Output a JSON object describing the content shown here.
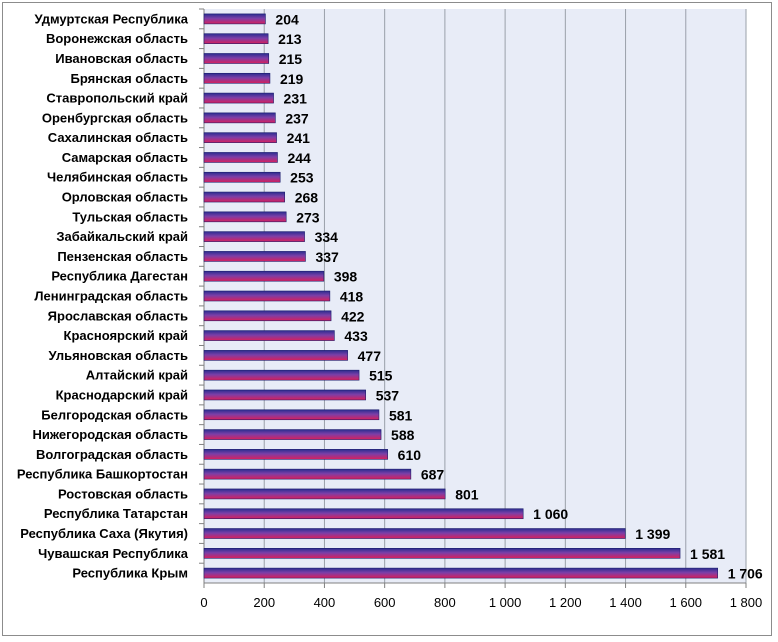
{
  "chart_data": {
    "type": "bar",
    "orientation": "horizontal",
    "categories": [
      "Удмуртская Республика",
      "Воронежская область",
      "Ивановская область",
      "Брянская область",
      "Ставропольский край",
      "Оренбургская область",
      "Сахалинская область",
      "Самарская область",
      "Челябинская область",
      "Орловская область",
      "Тульская область",
      "Забайкальский край",
      "Пензенская область",
      "Республика Дагестан",
      "Ленинградская область",
      "Ярославская область",
      "Красноярский край",
      "Ульяновская область",
      "Алтайский край",
      "Краснодарский край",
      "Белгородская область",
      "Нижегородская область",
      "Волгоградская область",
      "Республика Башкортостан",
      "Ростовская область",
      "Республика Татарстан",
      "Республика Саха (Якутия)",
      "Чувашская Республика",
      "Республика Крым"
    ],
    "values": [
      204,
      213,
      215,
      219,
      231,
      237,
      241,
      244,
      253,
      268,
      273,
      334,
      337,
      398,
      418,
      422,
      433,
      477,
      515,
      537,
      581,
      588,
      610,
      687,
      801,
      1060,
      1399,
      1581,
      1706
    ],
    "value_labels": [
      "204",
      "213",
      "215",
      "219",
      "231",
      "237",
      "241",
      "244",
      "253",
      "268",
      "273",
      "334",
      "337",
      "398",
      "418",
      "422",
      "433",
      "477",
      "515",
      "537",
      "581",
      "588",
      "610",
      "687",
      "801",
      "1 060",
      "1 399",
      "1 581",
      "1 706"
    ],
    "xlim": [
      0,
      1800
    ],
    "x_ticks": [
      0,
      200,
      400,
      600,
      800,
      1000,
      1200,
      1400,
      1600,
      1800
    ],
    "x_tick_labels": [
      "0",
      "200",
      "400",
      "600",
      "800",
      "1 000",
      "1 200",
      "1 400",
      "1 600",
      "1 800"
    ],
    "title": "",
    "xlabel": "",
    "ylabel": "",
    "grid": "vertical",
    "legend": "none",
    "colors": {
      "plot_background": "#e8ecf7",
      "gridline": "#9aa0aa",
      "bar_top": "#2b2d8f",
      "bar_middle": "#7b3fa8",
      "bar_bottom": "#d81f5c",
      "bar_edge": "#1e1e6e"
    }
  }
}
